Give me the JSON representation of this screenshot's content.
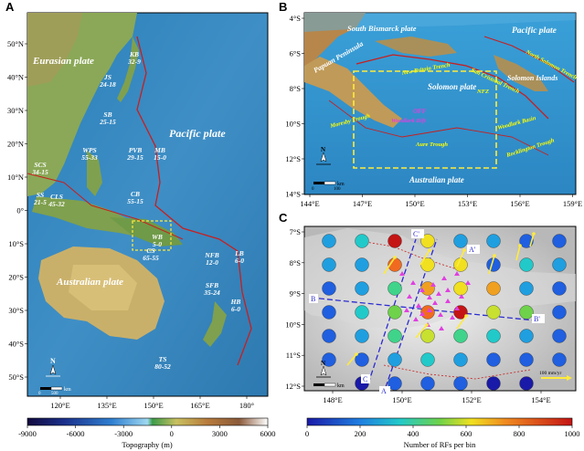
{
  "panel_a": {
    "letter": "A",
    "lat_ticks": [
      "50°N",
      "40°N",
      "30°N",
      "20°N",
      "10°N",
      "0°",
      "10°S",
      "20°S",
      "30°S",
      "40°S",
      "50°S"
    ],
    "lon_ticks": [
      "120°E",
      "135°E",
      "150°E",
      "165°E",
      "180°"
    ],
    "plates": {
      "eurasian": "Eurasian plate",
      "pacific": "Pacific plate",
      "australian": "Australian plate"
    },
    "regions": [
      {
        "name": "KB",
        "range": "32-9"
      },
      {
        "name": "JS",
        "range": "24-18"
      },
      {
        "name": "SB",
        "range": "25-15"
      },
      {
        "name": "SCS",
        "range": "34-15"
      },
      {
        "name": "WPS",
        "range": "55-33"
      },
      {
        "name": "PVB",
        "range": "29-15"
      },
      {
        "name": "MB",
        "range": "15-0"
      },
      {
        "name": "SS",
        "range": "21-5"
      },
      {
        "name": "CLS",
        "range": "45-32"
      },
      {
        "name": "CB",
        "range": "55-15"
      },
      {
        "name": "WB",
        "range": "5-0"
      },
      {
        "name": "CS",
        "range": "65-55"
      },
      {
        "name": "NFB",
        "range": "12-0"
      },
      {
        "name": "LB",
        "range": "6-0"
      },
      {
        "name": "SFB",
        "range": "35-24"
      },
      {
        "name": "HB",
        "range": "6-0"
      },
      {
        "name": "TS",
        "range": "80-52"
      }
    ],
    "north": "N",
    "scale_label": "km",
    "scale_values": [
      "0",
      "500"
    ]
  },
  "colorbar_topo": {
    "ticks": [
      "-9000",
      "-6000",
      "-3000",
      "0",
      "3000",
      "6000"
    ],
    "label": "Topography (m)"
  },
  "panel_b": {
    "letter": "B",
    "lat_ticks": [
      "4°S",
      "6°S",
      "8°S",
      "10°S",
      "12°S",
      "14°S"
    ],
    "lon_ticks": [
      "144°E",
      "147°E",
      "150°E",
      "153°E",
      "156°E",
      "159°E"
    ],
    "plates": {
      "south_bismarck": "South Bismarck plate",
      "pacific": "Pacific plate",
      "solomon": "Solomon plate",
      "australian": "Australian plate",
      "solomon_islands": "Solomon Islands"
    },
    "features": [
      "North Solomon Trench",
      "New Britain Trench",
      "San Cristobal Trench",
      "Papuan Peninsula",
      "Moresby Trough",
      "Aure Trough",
      "Woodlark Basin",
      "Rocklington Trough",
      "NFZ",
      "OFF",
      "Woodlark Rift"
    ],
    "north": "N",
    "scale_label": "km",
    "scale_values": [
      "0",
      "100"
    ]
  },
  "panel_c": {
    "letter": "C",
    "lat_ticks": [
      "7°S",
      "8°S",
      "9°S",
      "10°S",
      "11°S",
      "12°S"
    ],
    "lon_ticks": [
      "148°E",
      "150°E",
      "152°E",
      "154°E"
    ],
    "profile_labels": [
      "A",
      "A'",
      "B",
      "B'",
      "C",
      "C'"
    ],
    "velocity_label": "100 mm/yr",
    "north": "N",
    "scale_label": "km",
    "scale_values": [
      "0",
      "100"
    ]
  },
  "colorbar_rf": {
    "ticks": [
      "0",
      "200",
      "400",
      "600",
      "800",
      "1000"
    ],
    "label": "Number of RFs per bin"
  }
}
